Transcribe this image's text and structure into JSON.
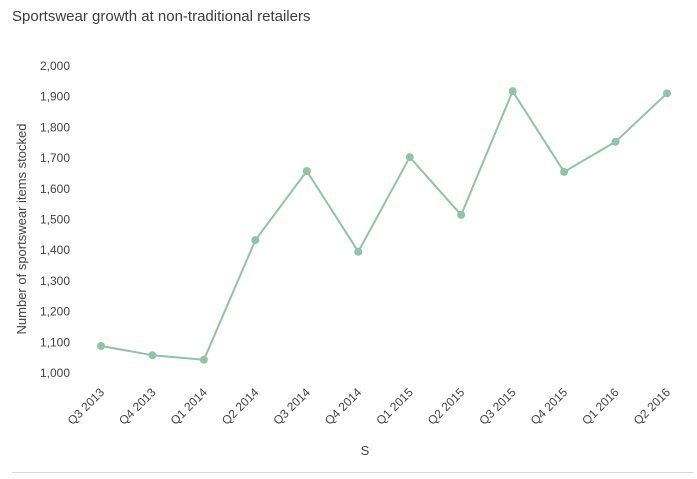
{
  "chart_data": {
    "type": "line",
    "title": "Sportswear growth at non-traditional retailers",
    "xlabel": "S",
    "ylabel": "Number of sportswear items stocked",
    "ylim": [
      1000,
      2000
    ],
    "yticks": [
      1000,
      1100,
      1200,
      1300,
      1400,
      1500,
      1600,
      1700,
      1800,
      1900,
      2000
    ],
    "ytick_labels": [
      "1,000",
      "1,100",
      "1,200",
      "1,300",
      "1,400",
      "1,500",
      "1,600",
      "1,700",
      "1,800",
      "1,900",
      "2,000"
    ],
    "categories": [
      "Q3 2013",
      "Q4 2013",
      "Q1 2014",
      "Q2 2014",
      "Q3 2014",
      "Q4 2014",
      "Q1 2015",
      "Q2 2015",
      "Q3 2015",
      "Q4 2015",
      "Q1 2016",
      "Q2 2016"
    ],
    "series": [
      {
        "values": [
          1088,
          1058,
          1043,
          1433,
          1658,
          1395,
          1703,
          1515,
          1918,
          1655,
          1753,
          1911
        ]
      }
    ],
    "grid": false,
    "line_color": "#8fc4a8"
  }
}
